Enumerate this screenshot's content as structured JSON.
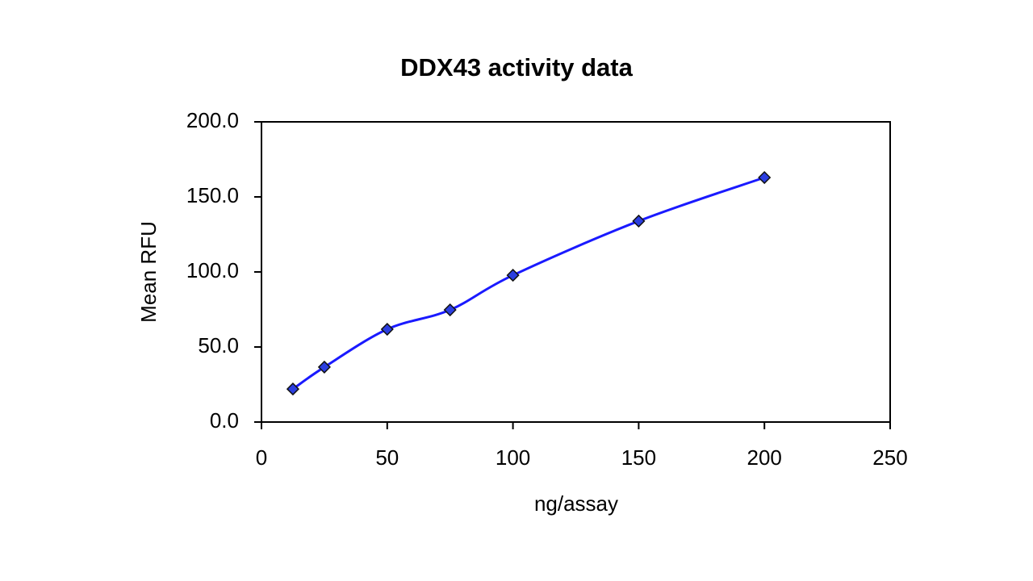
{
  "chart_data": {
    "type": "scatter",
    "title": "DDX43 activity data",
    "x_label": "ng/assay",
    "y_label": "Mean RFU",
    "x": [
      12.5,
      25,
      50,
      75,
      100,
      150,
      200
    ],
    "values": [
      22.0,
      36.6,
      61.8,
      74.7,
      97.8,
      133.9,
      162.9
    ],
    "color": "#2b3ee0",
    "line_color": "#1a1aff",
    "smooth": true,
    "xlim": [
      0,
      250
    ],
    "xticks": [
      0,
      50,
      100,
      150,
      200,
      250
    ],
    "ylim": [
      0,
      200
    ],
    "yticks": [
      {
        "value": 0,
        "label": "0.0"
      },
      {
        "value": 50,
        "label": "50.0"
      },
      {
        "value": 100,
        "label": "100.0"
      },
      {
        "value": 150,
        "label": "150.0"
      },
      {
        "value": 200,
        "label": "200.0"
      }
    ],
    "grid": false
  }
}
